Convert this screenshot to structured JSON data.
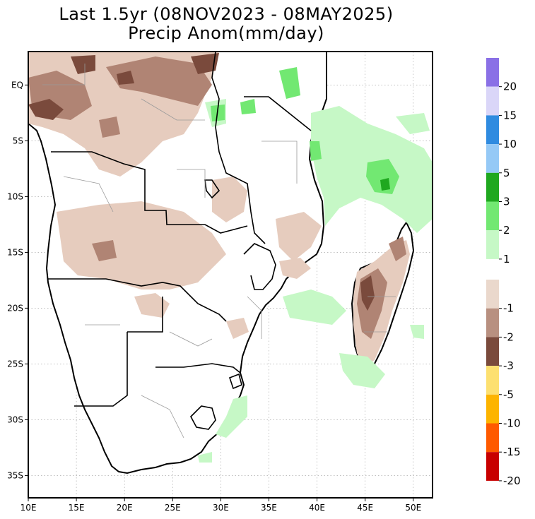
{
  "title": {
    "line1": "Last 1.5yr (08NOV2023 - 08MAY2025)",
    "line2": "Precip Anom(mm/day)"
  },
  "map": {
    "lon_range": [
      10,
      52
    ],
    "lat_range": [
      -37,
      3
    ],
    "x_ticks": [
      "10E",
      "15E",
      "20E",
      "25E",
      "30E",
      "35E",
      "40E",
      "45E",
      "50E"
    ],
    "y_ticks": [
      "EQ",
      "5S",
      "10S",
      "15S",
      "20S",
      "25S",
      "30S",
      "35S"
    ],
    "gridlines": true,
    "region": "Southern Africa and Madagascar"
  },
  "colorbar": {
    "wet": [
      {
        "label": "20",
        "color": "#8a70e6"
      },
      {
        "label": "15",
        "color": "#dad6f8"
      },
      {
        "label": "10",
        "color": "#2f8be0"
      },
      {
        "label": "5",
        "color": "#95c9f6"
      },
      {
        "label": "3",
        "color": "#1fa81f"
      },
      {
        "label": "2",
        "color": "#72e872"
      },
      {
        "label": "1",
        "color": "#c6f8c6"
      }
    ],
    "dry": [
      {
        "label": "-1",
        "color": "#ead8cc"
      },
      {
        "label": "-2",
        "color": "#b89080"
      },
      {
        "label": "-3",
        "color": "#7a4a3c"
      },
      {
        "label": "-5",
        "color": "#fde070"
      },
      {
        "label": "-10",
        "color": "#fdb400"
      },
      {
        "label": "-15",
        "color": "#ff5a00"
      },
      {
        "label": "-20",
        "color": "#c80000"
      }
    ]
  },
  "colors": {
    "dry_light": "#e6ccbe",
    "dry_mid": "#b08474",
    "dry_dark": "#7a4a3c",
    "wet_light": "#c6f8c6",
    "wet_mid": "#72e872",
    "wet_dark": "#1fa81f",
    "coast": "#000000",
    "borders": "#8a8a8a"
  }
}
